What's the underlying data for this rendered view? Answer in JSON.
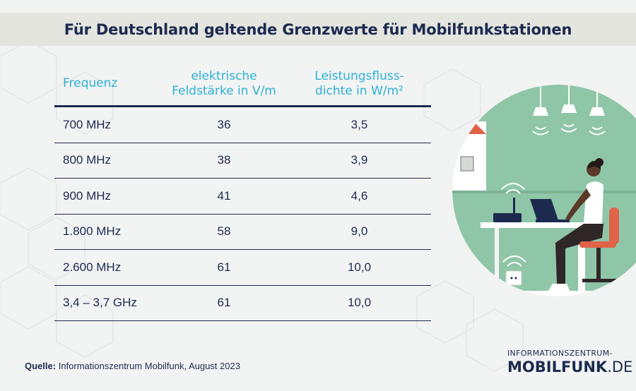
{
  "title": "Für Deutschland geltende Grenzwerte für Mobilfunkstationen",
  "table": {
    "headers": [
      [
        "Frequenz"
      ],
      [
        "elektrische",
        "Feldstärke in V/m"
      ],
      [
        "Leistungsfluss-",
        "dichte in W/m²"
      ]
    ],
    "rows": [
      {
        "frequency": "700 MHz",
        "field_strength": "36",
        "power_density": "3,5"
      },
      {
        "frequency": "800 MHz",
        "field_strength": "38",
        "power_density": "3,9"
      },
      {
        "frequency": "900 MHz",
        "field_strength": "41",
        "power_density": "4,6"
      },
      {
        "frequency": "1.800 MHz",
        "field_strength": "58",
        "power_density": "9,0"
      },
      {
        "frequency": "2.600 MHz",
        "field_strength": "61",
        "power_density": "10,0"
      },
      {
        "frequency": "3,4 – 3,7 GHz",
        "field_strength": "61",
        "power_density": "10,0"
      }
    ]
  },
  "source": {
    "label": "Quelle:",
    "text": "Informationszentrum Mobilfunk, August 2023"
  },
  "logo": {
    "top": "INFORMATIONSZENTRUM-",
    "main": "MOBILFUNK",
    "suffix": ".DE"
  },
  "colors": {
    "navy": "#1d2a4f",
    "accent_cyan": "#2bb1d6",
    "title_band": "#e4e5df",
    "illustration_green": "#8fc6a8",
    "chair_red": "#e0634a"
  }
}
